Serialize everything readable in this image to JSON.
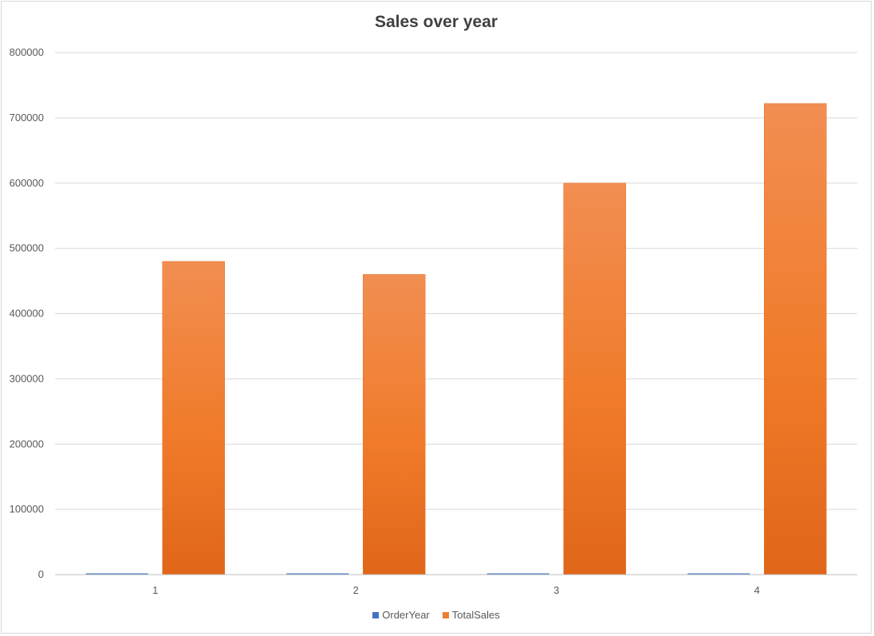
{
  "chart_data": {
    "type": "bar",
    "title": "Sales over year",
    "categories": [
      "1",
      "2",
      "3",
      "4"
    ],
    "series": [
      {
        "name": "OrderYear",
        "values": [
          2013,
          2014,
          2015,
          2016
        ],
        "color": "#4472C4"
      },
      {
        "name": "TotalSales",
        "values": [
          480000,
          460000,
          600000,
          722000
        ],
        "color": "#ED7D31"
      }
    ],
    "yticks": [
      "0",
      "100000",
      "200000",
      "300000",
      "400000",
      "500000",
      "600000",
      "700000",
      "800000"
    ],
    "ylim": [
      0,
      800000
    ],
    "grid": true,
    "legend_position": "bottom"
  }
}
